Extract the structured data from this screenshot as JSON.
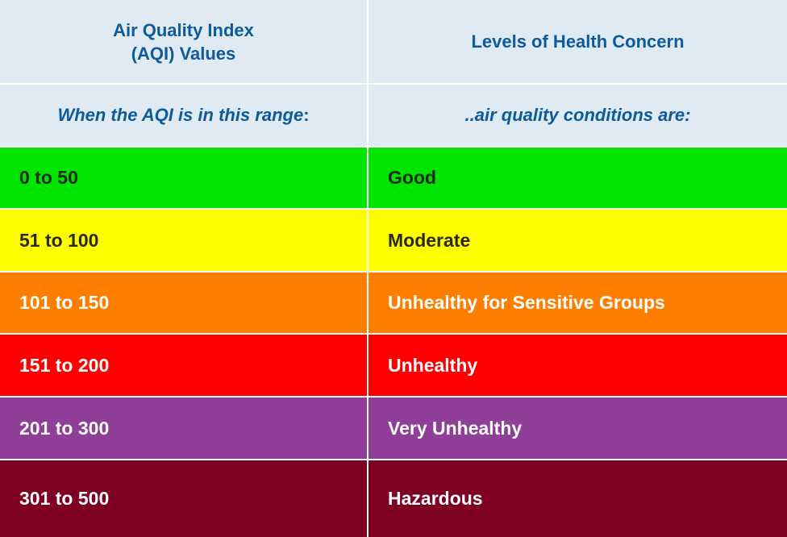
{
  "header": {
    "col1_line1": "Air Quality Index",
    "col1_line2": "(AQI) Values",
    "col2": "Levels of Health Concern"
  },
  "subheader": {
    "col1_prefix": "When the AQI is in this range",
    "col1_suffix": ":",
    "col2": "..air quality conditions are:"
  },
  "rows": [
    {
      "range": "0 to 50",
      "level": "Good",
      "color": "#00e400",
      "text_color": "#1f2a1f"
    },
    {
      "range": "51 to 100",
      "level": "Moderate",
      "color": "#ffff00",
      "text_color": "#2a2a10"
    },
    {
      "range": "101 to 150",
      "level": "Unhealthy for Sensitive Groups",
      "color": "#ff7e00",
      "text_color": "#ffffff"
    },
    {
      "range": "151 to 200",
      "level": "Unhealthy",
      "color": "#ff0000",
      "text_color": "#ffffff"
    },
    {
      "range": "201 to 300",
      "level": "Very Unhealthy",
      "color": "#8f3f97",
      "text_color": "#ffffff"
    },
    {
      "range": "301 to 500",
      "level": "Hazardous",
      "color": "#7e0023",
      "text_color": "#ffffff"
    }
  ]
}
